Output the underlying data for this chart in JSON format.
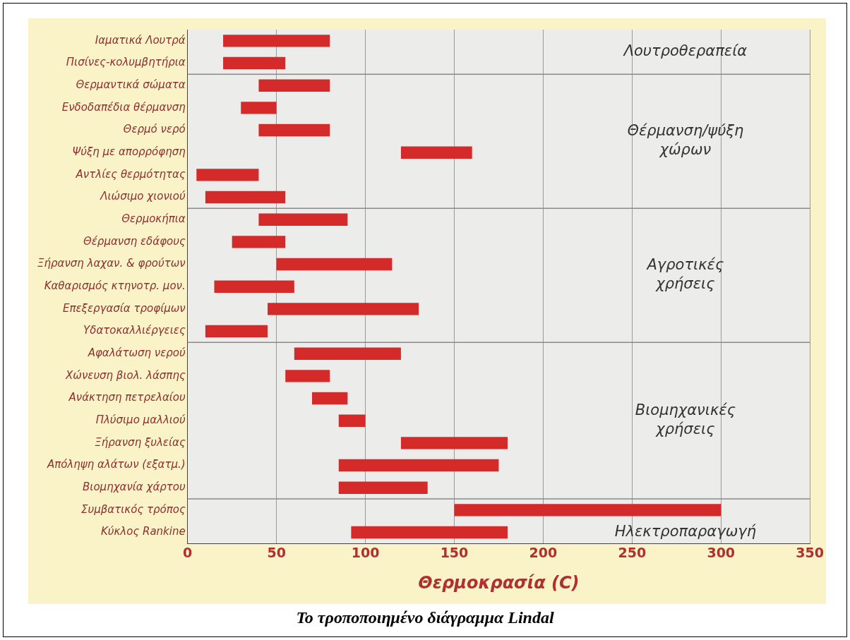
{
  "chart_data": {
    "type": "bar",
    "orientation": "horizontal",
    "title": "Το τροποποιημένο διάγραμμα Lindal",
    "xlabel": "Θερμοκρασία (C)",
    "categories": [
      "Ιαματικά Λουτρά",
      "Πισίνες-κολυμβητήρια",
      "Θερμαντικά σώματα",
      "Ενδοδαπέδια θέρμανση",
      "Θερμό νερό",
      "Ψύξη με απορρόφηση",
      "Αντλίες θερμότητας",
      "Λιώσιμο χιονιού",
      "Θερμοκήπια",
      "Θέρμανση εδάφους",
      "Ξήρανση λαχαν. & φρούτων",
      "Καθαρισμός κτηνοτρ. μον.",
      "Επεξεργασία τροφίμων",
      "Υδατοκαλλιέργειες",
      "Αφαλάτωση νερού",
      "Χώνευση βιολ. λάσπης",
      "Ανάκτηση πετρελαίου",
      "Πλύσιμο μαλλιού",
      "Ξήρανση ξυλείας",
      "Απόληψη αλάτων (εξατμ.)",
      "Βιομηχανία χάρτου",
      "Συμβατικός τρόπος",
      "Κύκλος Rankine"
    ],
    "base": [
      20,
      20,
      40,
      30,
      40,
      120,
      5,
      10,
      40,
      25,
      50,
      15,
      45,
      10,
      60,
      55,
      70,
      85,
      120,
      85,
      85,
      150,
      92
    ],
    "values": [
      60,
      35,
      40,
      20,
      40,
      40,
      35,
      45,
      50,
      30,
      65,
      45,
      85,
      35,
      60,
      25,
      20,
      15,
      60,
      90,
      50,
      150,
      88
    ],
    "color": "#d42a2a",
    "xlim": [
      0,
      350
    ],
    "xticks": [
      0,
      50,
      100,
      150,
      200,
      250,
      300,
      350
    ],
    "grid": "x",
    "annotations": [
      "Λουτροθεραπεία",
      "Θέρμανση/ψύξη\nχώρων",
      "Αγροτικές\nχρήσεις",
      "Βιομηχανικές\nχρήσεις",
      "Ηλεκτροπαραγωγή"
    ]
  }
}
